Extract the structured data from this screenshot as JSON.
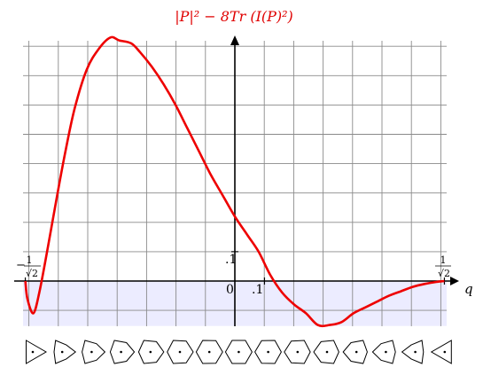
{
  "chart_data": {
    "type": "line",
    "title": "|P|² − 8Tr (I(P)²)",
    "xlabel": "q",
    "ylabel": "",
    "xlim": [
      -0.7071,
      0.7071
    ],
    "ylim": [
      -0.15,
      0.88
    ],
    "grid": true,
    "shaded_region": {
      "y_from": -0.15,
      "y_to": 0,
      "color": "#ececff"
    },
    "tick_labels": {
      "x_left": "−1/√2",
      "x_right": "1/√2",
      "x_point_one": ".1",
      "y_point_one": ".1",
      "origin": "0"
    },
    "series": [
      {
        "color": "#ee0000",
        "x": [
          -0.707,
          -0.7,
          -0.68,
          -0.66,
          -0.63,
          -0.6,
          -0.57,
          -0.54,
          -0.5,
          -0.46,
          -0.42,
          -0.39,
          -0.35,
          -0.32,
          -0.28,
          -0.24,
          -0.2,
          -0.16,
          -0.12,
          -0.08,
          -0.04,
          0.0,
          0.04,
          0.08,
          0.12,
          0.16,
          0.2,
          0.24,
          0.28,
          0.32,
          0.36,
          0.4,
          0.44,
          0.48,
          0.52,
          0.56,
          0.6,
          0.64,
          0.68,
          0.707
        ],
        "y": [
          0.0,
          -0.06,
          -0.11,
          -0.04,
          0.12,
          0.29,
          0.45,
          0.59,
          0.72,
          0.79,
          0.83,
          0.82,
          0.81,
          0.78,
          0.73,
          0.67,
          0.6,
          0.52,
          0.44,
          0.36,
          0.29,
          0.22,
          0.16,
          0.1,
          0.02,
          -0.04,
          -0.08,
          -0.11,
          -0.15,
          -0.15,
          -0.14,
          -0.11,
          -0.09,
          -0.07,
          -0.05,
          -0.035,
          -0.02,
          -0.01,
          -0.003,
          0.0
        ]
      }
    ],
    "shape_strip": {
      "count": 15,
      "icon": "polygon-with-dot-icon"
    }
  }
}
